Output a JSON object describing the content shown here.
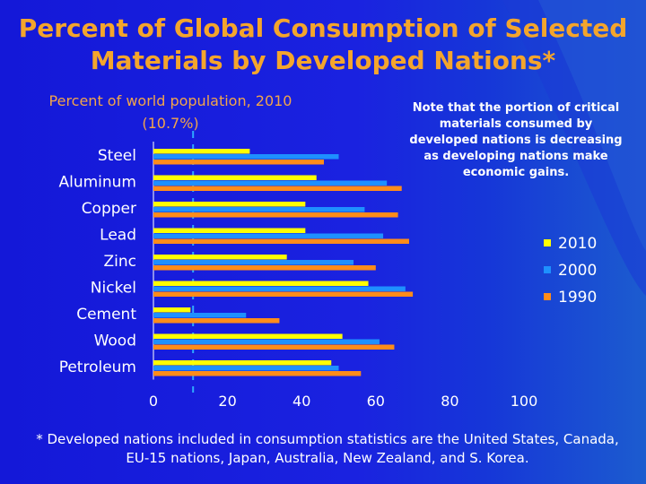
{
  "slide": {
    "title_line1": "Percent of Global Consumption of Selected",
    "title_line2": "Materials by Developed Nations*",
    "subtitle_line1": "Percent of world population, 2010",
    "subtitle_line2": "(10.7%)",
    "note": "Note that the portion of critical materials consumed by developed nations is decreasing as developing nations make economic gains.",
    "footnote": "* Developed nations included in consumption statistics are the United States, Canada, EU-15 nations, Japan, Australia, New Zealand, and S. Korea."
  },
  "chart_data": {
    "type": "bar",
    "orientation": "horizontal",
    "categories": [
      "Steel",
      "Aluminum",
      "Copper",
      "Lead",
      "Zinc",
      "Nickel",
      "Cement",
      "Wood",
      "Petroleum"
    ],
    "series": [
      {
        "name": "2010",
        "color": "#ffff00",
        "values": [
          26,
          44,
          41,
          41,
          36,
          58,
          10,
          51,
          48
        ]
      },
      {
        "name": "2000",
        "color": "#1e90ff",
        "values": [
          50,
          63,
          57,
          62,
          54,
          68,
          25,
          61,
          50
        ]
      },
      {
        "name": "1990",
        "color": "#ff8c1a",
        "values": [
          46,
          67,
          66,
          69,
          60,
          70,
          34,
          65,
          56
        ]
      }
    ],
    "xlim": [
      0,
      100
    ],
    "xticks": [
      "0",
      "20",
      "40",
      "60",
      "80",
      "100"
    ],
    "reference_line": {
      "value": 10.7
    },
    "legend_position": "right"
  },
  "colors": {
    "background": "#1418d8",
    "title": "#f4a52c",
    "reference_line": "#2fa8ff"
  }
}
